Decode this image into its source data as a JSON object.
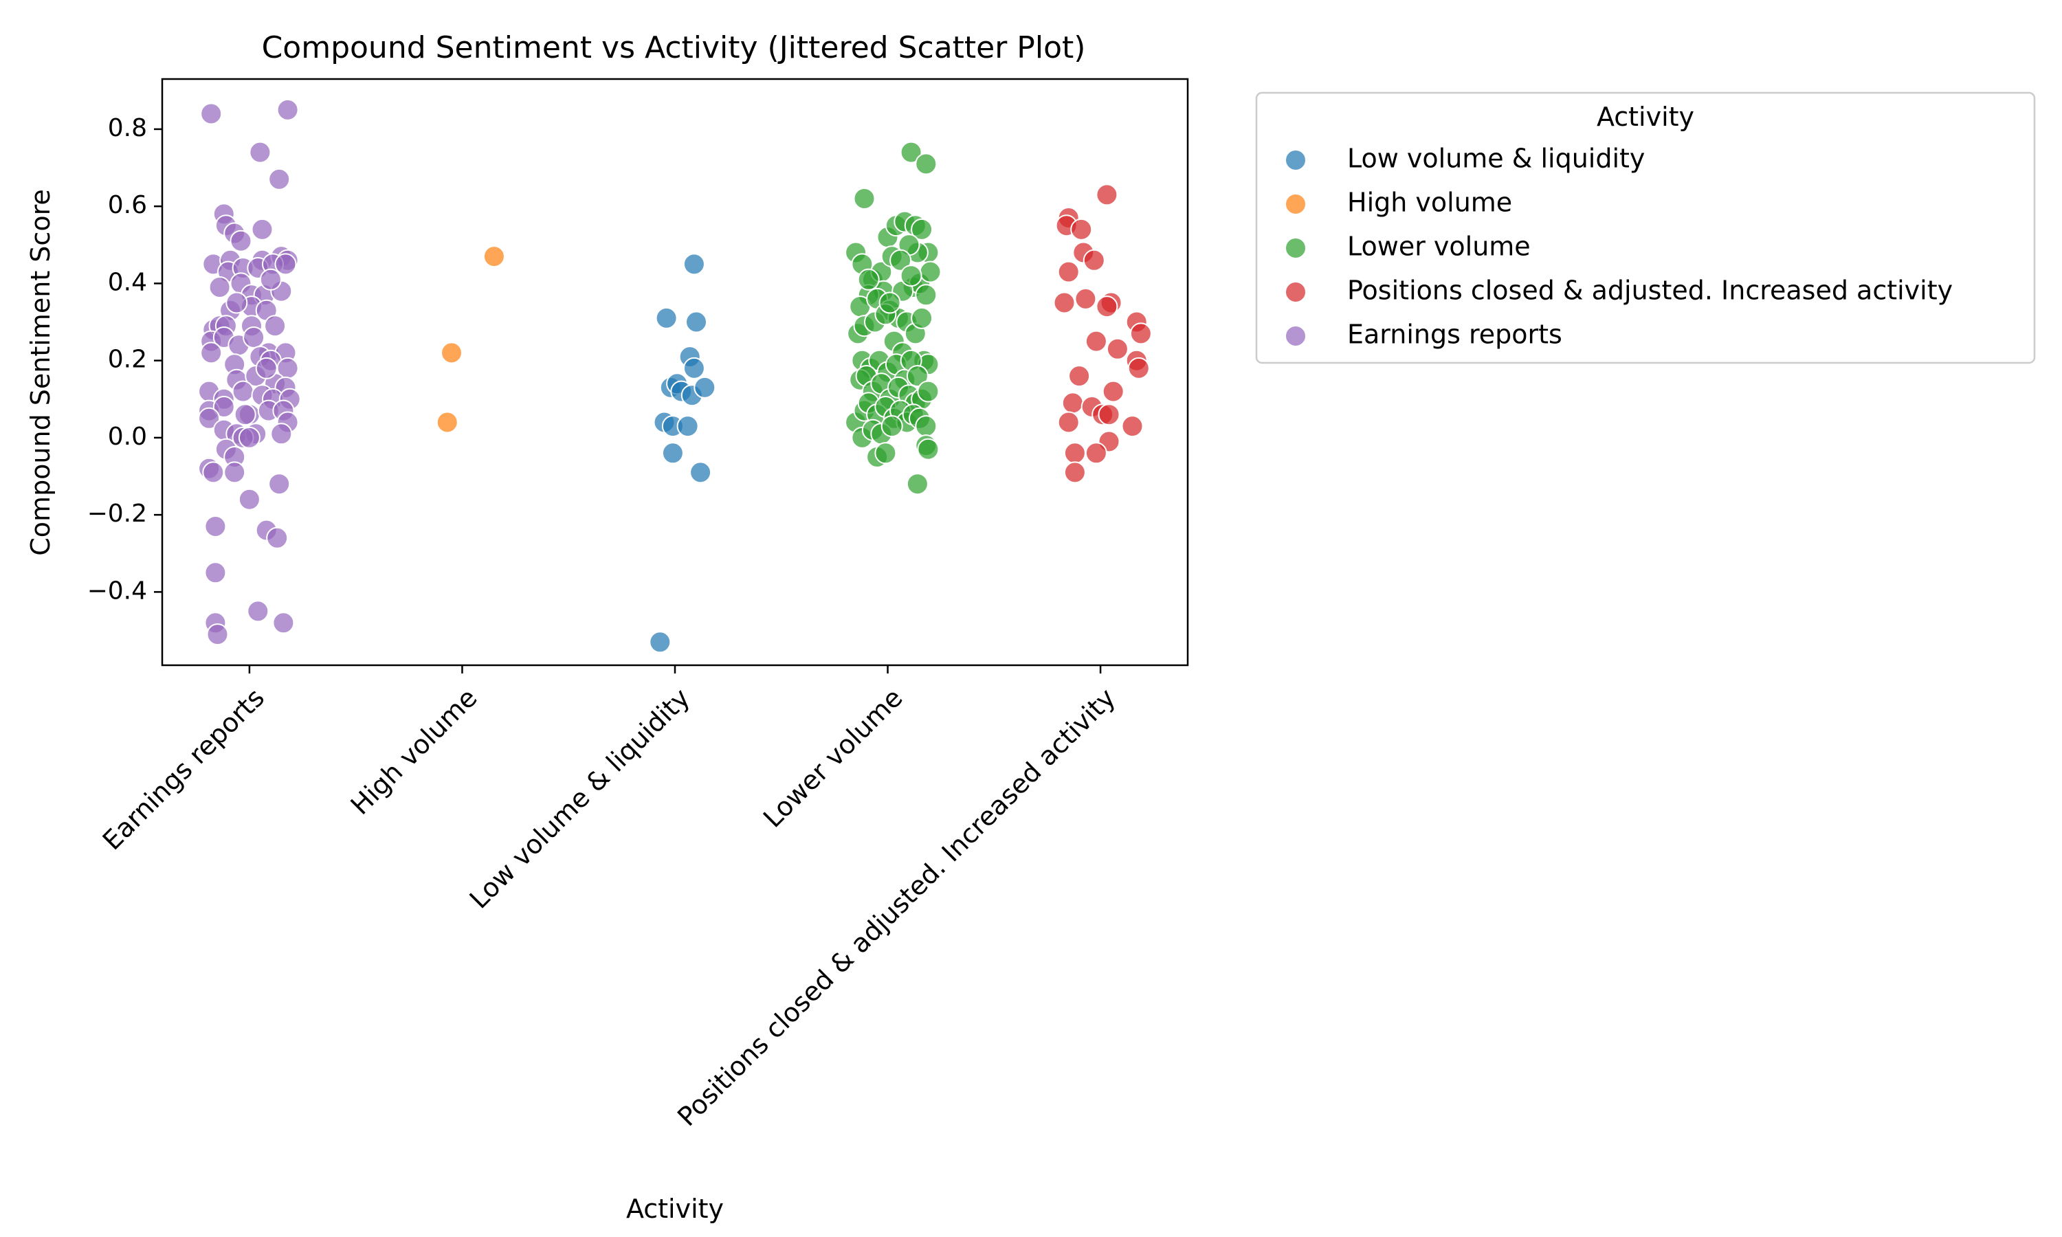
{
  "chart_data": {
    "type": "scatter",
    "title": "Compound Sentiment vs Activity (Jittered Scatter Plot)",
    "xlabel": "Activity",
    "ylabel": "Compound Sentiment Score",
    "categories": [
      "Earnings reports",
      "High volume",
      "Low volume & liquidity",
      "Lower volume",
      "Positions closed & adjusted. Increased activity"
    ],
    "ylim": [
      -0.59,
      0.93
    ],
    "yticks": [
      {
        "value": -0.4,
        "label": "−0.4"
      },
      {
        "value": -0.2,
        "label": "−0.2"
      },
      {
        "value": 0.0,
        "label": "0.0"
      },
      {
        "value": 0.2,
        "label": "0.2"
      },
      {
        "value": 0.4,
        "label": "0.4"
      },
      {
        "value": 0.6,
        "label": "0.6"
      },
      {
        "value": 0.8,
        "label": "0.8"
      }
    ],
    "grid": false,
    "legend": {
      "title": "Activity",
      "placement": "outside-upper-right",
      "order": [
        "Low volume & liquidity",
        "High volume",
        "Lower volume",
        "Positions closed & adjusted. Increased activity",
        "Earnings reports"
      ]
    },
    "series": [
      {
        "name": "Low volume & liquidity",
        "color": "#1f77b4",
        "points": [
          [
            1.93,
            -0.53
          ],
          [
            1.96,
            0.31
          ],
          [
            1.98,
            0.13
          ],
          [
            2.01,
            0.14
          ],
          [
            1.95,
            0.04
          ],
          [
            1.99,
            0.03
          ],
          [
            2.03,
            0.12
          ],
          [
            2.07,
            0.21
          ],
          [
            2.09,
            0.18
          ],
          [
            2.1,
            0.3
          ],
          [
            2.09,
            0.45
          ],
          [
            2.08,
            0.11
          ],
          [
            2.14,
            0.13
          ],
          [
            2.06,
            0.03
          ],
          [
            2.12,
            -0.09
          ],
          [
            1.99,
            -0.04
          ]
        ]
      },
      {
        "name": "High volume",
        "color": "#ff7f0e",
        "points": [
          [
            0.93,
            0.04
          ],
          [
            0.95,
            0.22
          ],
          [
            1.15,
            0.47
          ]
        ]
      },
      {
        "name": "Lower volume",
        "color": "#2ca02c",
        "points": [
          [
            3.11,
            0.74
          ],
          [
            3.18,
            0.71
          ],
          [
            2.89,
            0.62
          ],
          [
            2.85,
            0.48
          ],
          [
            2.88,
            0.45
          ],
          [
            2.93,
            0.41
          ],
          [
            2.97,
            0.43
          ],
          [
            3.0,
            0.52
          ],
          [
            3.04,
            0.55
          ],
          [
            3.08,
            0.56
          ],
          [
            3.13,
            0.55
          ],
          [
            3.16,
            0.54
          ],
          [
            3.19,
            0.48
          ],
          [
            3.14,
            0.48
          ],
          [
            3.1,
            0.5
          ],
          [
            3.02,
            0.47
          ],
          [
            3.06,
            0.46
          ],
          [
            2.98,
            0.38
          ],
          [
            2.91,
            0.37
          ],
          [
            2.87,
            0.34
          ],
          [
            2.95,
            0.36
          ],
          [
            3.01,
            0.33
          ],
          [
            3.05,
            0.31
          ],
          [
            3.09,
            0.3
          ],
          [
            3.12,
            0.39
          ],
          [
            3.15,
            0.4
          ],
          [
            3.18,
            0.37
          ],
          [
            3.2,
            0.43
          ],
          [
            2.86,
            0.27
          ],
          [
            2.89,
            0.29
          ],
          [
            2.94,
            0.3
          ],
          [
            2.99,
            0.32
          ],
          [
            3.03,
            0.25
          ],
          [
            3.07,
            0.22
          ],
          [
            3.13,
            0.27
          ],
          [
            3.17,
            0.2
          ],
          [
            3.19,
            0.19
          ],
          [
            2.88,
            0.2
          ],
          [
            2.92,
            0.18
          ],
          [
            2.96,
            0.2
          ],
          [
            3.0,
            0.17
          ],
          [
            3.04,
            0.19
          ],
          [
            3.08,
            0.15
          ],
          [
            3.11,
            0.2
          ],
          [
            3.14,
            0.16
          ],
          [
            2.87,
            0.15
          ],
          [
            2.9,
            0.16
          ],
          [
            2.93,
            0.12
          ],
          [
            2.97,
            0.14
          ],
          [
            3.01,
            0.1
          ],
          [
            3.05,
            0.13
          ],
          [
            3.1,
            0.11
          ],
          [
            3.13,
            0.09
          ],
          [
            3.16,
            0.1
          ],
          [
            3.19,
            0.12
          ],
          [
            2.85,
            0.04
          ],
          [
            2.89,
            0.07
          ],
          [
            2.91,
            0.09
          ],
          [
            2.95,
            0.06
          ],
          [
            2.99,
            0.08
          ],
          [
            3.03,
            0.05
          ],
          [
            3.06,
            0.07
          ],
          [
            3.09,
            0.04
          ],
          [
            3.12,
            0.06
          ],
          [
            3.15,
            0.05
          ],
          [
            3.18,
            0.03
          ],
          [
            2.88,
            0.0
          ],
          [
            2.93,
            0.02
          ],
          [
            2.97,
            0.01
          ],
          [
            3.02,
            0.03
          ],
          [
            2.95,
            -0.05
          ],
          [
            2.99,
            -0.04
          ],
          [
            3.18,
            -0.02
          ],
          [
            3.19,
            -0.03
          ],
          [
            3.14,
            -0.12
          ],
          [
            3.07,
            0.38
          ],
          [
            3.11,
            0.42
          ],
          [
            3.01,
            0.35
          ],
          [
            2.91,
            0.41
          ],
          [
            3.16,
            0.31
          ]
        ]
      },
      {
        "name": "Positions closed & adjusted. Increased activity",
        "color": "#d62728",
        "points": [
          [
            4.03,
            0.63
          ],
          [
            3.85,
            0.57
          ],
          [
            3.84,
            0.55
          ],
          [
            3.91,
            0.54
          ],
          [
            3.92,
            0.48
          ],
          [
            3.97,
            0.46
          ],
          [
            3.85,
            0.43
          ],
          [
            3.93,
            0.36
          ],
          [
            4.05,
            0.35
          ],
          [
            4.03,
            0.34
          ],
          [
            3.83,
            0.35
          ],
          [
            4.17,
            0.3
          ],
          [
            4.19,
            0.27
          ],
          [
            3.98,
            0.25
          ],
          [
            4.08,
            0.23
          ],
          [
            4.17,
            0.2
          ],
          [
            4.18,
            0.18
          ],
          [
            3.9,
            0.16
          ],
          [
            4.06,
            0.12
          ],
          [
            3.87,
            0.09
          ],
          [
            3.96,
            0.08
          ],
          [
            4.01,
            0.06
          ],
          [
            4.04,
            0.06
          ],
          [
            3.85,
            0.04
          ],
          [
            4.15,
            0.03
          ],
          [
            4.04,
            -0.01
          ],
          [
            3.88,
            -0.04
          ],
          [
            3.98,
            -0.04
          ],
          [
            3.88,
            -0.09
          ]
        ]
      },
      {
        "name": "Earnings reports",
        "color": "#9467bd",
        "points": [
          [
            -0.18,
            0.84
          ],
          [
            0.18,
            0.85
          ],
          [
            0.05,
            0.74
          ],
          [
            0.14,
            0.67
          ],
          [
            -0.12,
            0.58
          ],
          [
            -0.11,
            0.55
          ],
          [
            0.06,
            0.54
          ],
          [
            -0.07,
            0.53
          ],
          [
            -0.04,
            0.51
          ],
          [
            -0.17,
            0.45
          ],
          [
            -0.09,
            0.46
          ],
          [
            0.06,
            0.46
          ],
          [
            0.15,
            0.47
          ],
          [
            0.18,
            0.46
          ],
          [
            -0.1,
            0.43
          ],
          [
            -0.03,
            0.44
          ],
          [
            0.04,
            0.44
          ],
          [
            0.11,
            0.45
          ],
          [
            0.17,
            0.45
          ],
          [
            -0.14,
            0.39
          ],
          [
            -0.04,
            0.4
          ],
          [
            0.01,
            0.37
          ],
          [
            0.07,
            0.37
          ],
          [
            0.15,
            0.38
          ],
          [
            -0.09,
            0.33
          ],
          [
            0.01,
            0.34
          ],
          [
            0.08,
            0.33
          ],
          [
            -0.17,
            0.28
          ],
          [
            -0.14,
            0.29
          ],
          [
            -0.11,
            0.29
          ],
          [
            0.01,
            0.29
          ],
          [
            0.12,
            0.29
          ],
          [
            -0.18,
            0.25
          ],
          [
            -0.12,
            0.26
          ],
          [
            -0.05,
            0.24
          ],
          [
            0.02,
            0.26
          ],
          [
            0.09,
            0.22
          ],
          [
            0.17,
            0.22
          ],
          [
            -0.18,
            0.22
          ],
          [
            -0.07,
            0.19
          ],
          [
            0.05,
            0.21
          ],
          [
            0.1,
            0.2
          ],
          [
            0.18,
            0.18
          ],
          [
            -0.06,
            0.15
          ],
          [
            0.03,
            0.16
          ],
          [
            0.12,
            0.14
          ],
          [
            0.17,
            0.13
          ],
          [
            -0.19,
            0.12
          ],
          [
            -0.12,
            0.1
          ],
          [
            -0.03,
            0.12
          ],
          [
            0.06,
            0.11
          ],
          [
            0.11,
            0.1
          ],
          [
            0.19,
            0.1
          ],
          [
            -0.19,
            0.07
          ],
          [
            -0.12,
            0.08
          ],
          [
            0.0,
            0.06
          ],
          [
            0.09,
            0.07
          ],
          [
            0.16,
            0.07
          ],
          [
            0.18,
            0.04
          ],
          [
            -0.19,
            0.05
          ],
          [
            -0.12,
            0.02
          ],
          [
            -0.06,
            0.01
          ],
          [
            0.03,
            0.01
          ],
          [
            0.15,
            0.01
          ],
          [
            -0.03,
            0.0
          ],
          [
            0.0,
            0.0
          ],
          [
            -0.11,
            -0.03
          ],
          [
            -0.07,
            -0.05
          ],
          [
            -0.19,
            -0.08
          ],
          [
            -0.17,
            -0.09
          ],
          [
            -0.07,
            -0.09
          ],
          [
            0.14,
            -0.12
          ],
          [
            0.0,
            -0.16
          ],
          [
            -0.16,
            -0.23
          ],
          [
            0.08,
            -0.24
          ],
          [
            0.13,
            -0.26
          ],
          [
            -0.16,
            -0.35
          ],
          [
            0.04,
            -0.45
          ],
          [
            -0.16,
            -0.48
          ],
          [
            0.16,
            -0.48
          ],
          [
            -0.15,
            -0.51
          ],
          [
            0.1,
            0.41
          ],
          [
            -0.06,
            0.35
          ],
          [
            0.08,
            0.18
          ],
          [
            -0.02,
            0.06
          ]
        ]
      }
    ]
  }
}
